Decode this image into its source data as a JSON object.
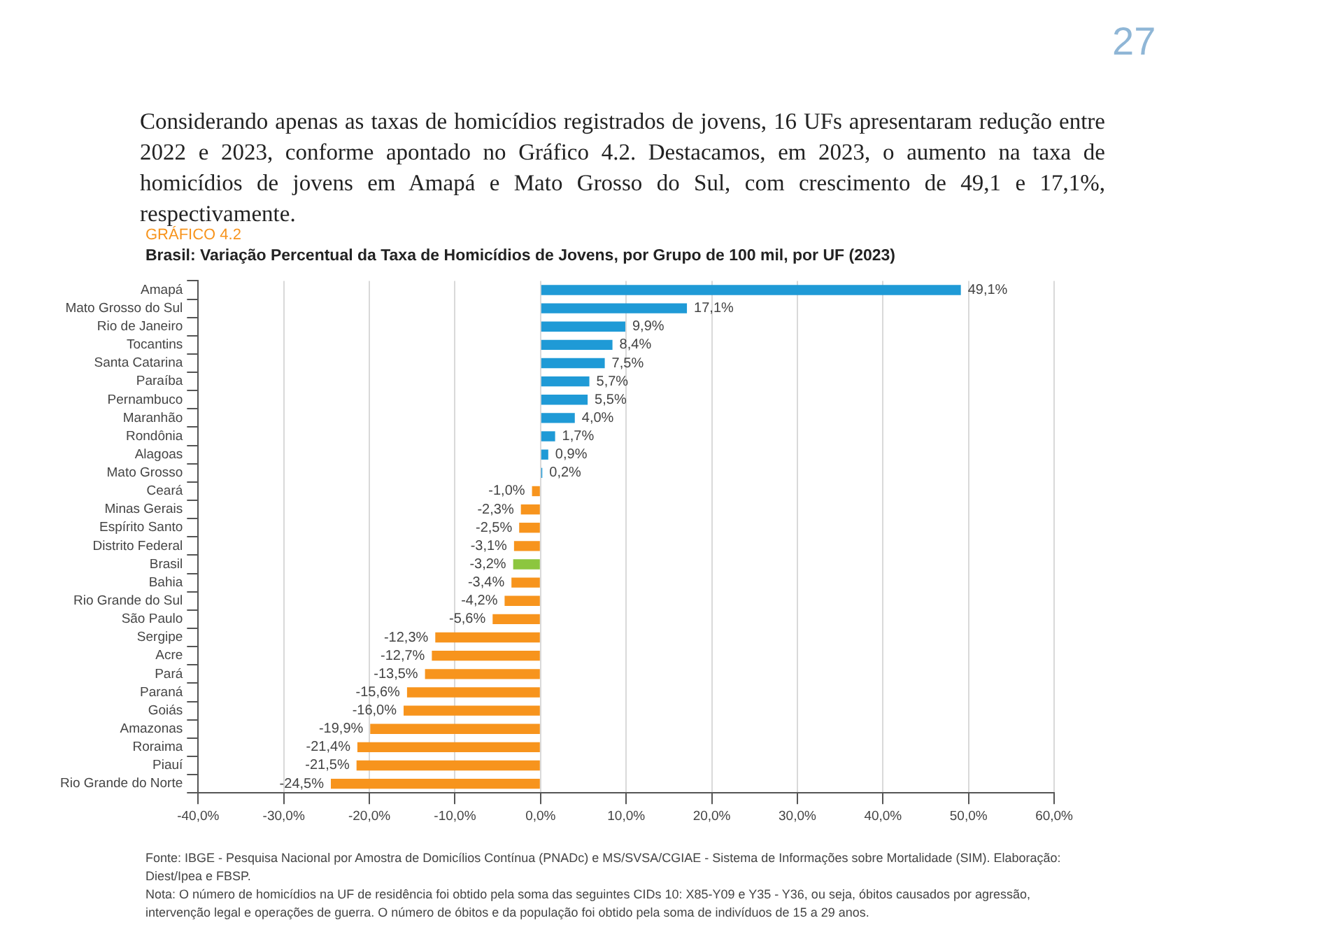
{
  "chart_data": {
    "type": "bar",
    "orientation": "horizontal",
    "title": "Brasil: Variação Percentual da Taxa de Homicídios de Jovens, por Grupo de 100 mil, por UF (2023)",
    "subtitle": "GRÁFICO 4.2",
    "categories": [
      "Amapá",
      "Mato Grosso do Sul",
      "Rio de Janeiro",
      "Tocantins",
      "Santa Catarina",
      "Paraíba",
      "Pernambuco",
      "Maranhão",
      "Rondônia",
      "Alagoas",
      "Mato Grosso",
      "Ceará",
      "Minas Gerais",
      "Espírito Santo",
      "Distrito Federal",
      "Brasil",
      "Bahia",
      "Rio Grande do Sul",
      "São Paulo",
      "Sergipe",
      "Acre",
      "Pará",
      "Paraná",
      "Goiás",
      "Amazonas",
      "Roraima",
      "Piauí",
      "Rio Grande do Norte"
    ],
    "values": [
      49.1,
      17.1,
      9.9,
      8.4,
      7.5,
      5.7,
      5.5,
      4.0,
      1.7,
      0.9,
      0.2,
      -1.0,
      -2.3,
      -2.5,
      -3.1,
      -3.2,
      -3.4,
      -4.2,
      -5.6,
      -12.3,
      -12.7,
      -13.5,
      -15.6,
      -16.0,
      -19.9,
      -21.4,
      -21.5,
      -24.5
    ],
    "value_labels": [
      "49,1%",
      "17,1%",
      "9,9%",
      "8,4%",
      "7,5%",
      "5,7%",
      "5,5%",
      "4,0%",
      "1,7%",
      "0,9%",
      "0,2%",
      "-1,0%",
      "-2,3%",
      "-2,5%",
      "-3,1%",
      "-3,2%",
      "-3,4%",
      "-4,2%",
      "-5,6%",
      "-12,3%",
      "-12,7%",
      "-13,5%",
      "-15,6%",
      "-16,0%",
      "-19,9%",
      "-21,4%",
      "-21,5%",
      "-24,5%"
    ],
    "colors": [
      "#1f9ad6",
      "#1f9ad6",
      "#1f9ad6",
      "#1f9ad6",
      "#1f9ad6",
      "#1f9ad6",
      "#1f9ad6",
      "#1f9ad6",
      "#1f9ad6",
      "#1f9ad6",
      "#1f9ad6",
      "#f7941d",
      "#f7941d",
      "#f7941d",
      "#f7941d",
      "#8cc63f",
      "#f7941d",
      "#f7941d",
      "#f7941d",
      "#f7941d",
      "#f7941d",
      "#f7941d",
      "#f7941d",
      "#f7941d",
      "#f7941d",
      "#f7941d",
      "#f7941d",
      "#f7941d"
    ],
    "xlim": [
      -40,
      60
    ],
    "xticks": [
      {
        "value": -40,
        "label": "-40,0%"
      },
      {
        "value": -30,
        "label": "-30,0%"
      },
      {
        "value": -20,
        "label": "-20,0%"
      },
      {
        "value": -10,
        "label": "-10,0%"
      },
      {
        "value": 0,
        "label": "0,0%"
      },
      {
        "value": 10,
        "label": "10,0%"
      },
      {
        "value": 20,
        "label": "20,0%"
      },
      {
        "value": 30,
        "label": "30,0%"
      },
      {
        "value": 40,
        "label": "40,0%"
      },
      {
        "value": 50,
        "label": "50,0%"
      },
      {
        "value": 60,
        "label": "60,0%"
      }
    ],
    "grid": "x",
    "legend": false,
    "annotations": [
      "Considerando apenas as taxas de homicídios registrados de jovens, 16 UFs apresentaram redução entre 2022 e 2023, conforme apontado no Gráfico 4.2. Destacamos, em 2023, o aumento na taxa de homicídios de jovens em Amapá e Mato Grosso do Sul, com crescimento de 49,1 e 17,1%, respectivamente.",
      "27",
      "Fonte: IBGE - Pesquisa Nacional por Amostra de Domicílios Contínua (PNADc) e MS/SVSA/CGIAE - Sistema de Informações sobre Mortalidade (SIM). Elaboração: Diest/Ipea e FBSP.",
      "Nota: O número de homicídios na UF de residência foi obtido pela soma das seguintes CIDs 10: X85-Y09 e Y35 - Y36, ou seja, óbitos causados por agressão, intervenção legal e operações de guerra. O número de óbitos e da população foi obtido pela soma de indivíduos de 15 a 29 anos."
    ]
  }
}
